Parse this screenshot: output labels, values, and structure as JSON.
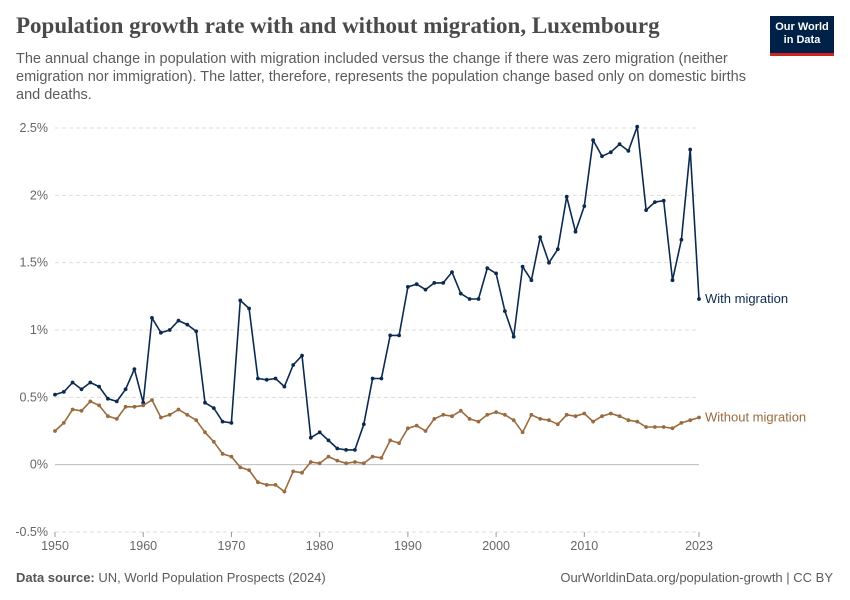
{
  "header": {
    "title": "Population growth rate with and without migration, Luxembourg",
    "subtitle": "The annual change in population with migration included versus the change if there was zero migration (neither emigration nor immigration). The latter, therefore, represents the population change based only on domestic births and deaths.",
    "logo_line1": "Our World",
    "logo_line2": "in Data"
  },
  "footer": {
    "source_label": "Data source:",
    "source_text": "UN, World Population Prospects (2024)",
    "url": "OurWorldinData.org/population-growth | CC BY"
  },
  "colors": {
    "with_migration": "#0c2a50",
    "without_migration": "#9a6b3e",
    "grid": "#dddddd",
    "zero_line": "#bbbbbb",
    "logo_bg": "#002147",
    "logo_accent": "#ce261e"
  },
  "chart_data": {
    "type": "line",
    "title": "Population growth rate with and without migration, Luxembourg",
    "xlabel": "",
    "ylabel": "",
    "xlim": [
      1950,
      2023
    ],
    "ylim": [
      -0.5,
      2.5
    ],
    "x_ticks": [
      "1950",
      "1960",
      "1970",
      "1980",
      "1990",
      "2000",
      "2010",
      "2023"
    ],
    "x_tick_values": [
      1950,
      1960,
      1970,
      1980,
      1990,
      2000,
      2010,
      2023
    ],
    "y_ticks": [
      "-0.5%",
      "0%",
      "0.5%",
      "1%",
      "1.5%",
      "2%",
      "2.5%"
    ],
    "y_tick_values": [
      -0.5,
      0,
      0.5,
      1,
      1.5,
      2,
      2.5
    ],
    "grid": true,
    "x_start": 1950,
    "series": [
      {
        "name": "With migration",
        "values": [
          0.52,
          0.54,
          0.61,
          0.56,
          0.61,
          0.58,
          0.49,
          0.47,
          0.56,
          0.71,
          0.46,
          1.09,
          0.98,
          1.0,
          1.07,
          1.04,
          0.99,
          0.46,
          0.42,
          0.32,
          0.31,
          1.22,
          1.16,
          0.64,
          0.63,
          0.64,
          0.58,
          0.74,
          0.81,
          0.2,
          0.24,
          0.18,
          0.12,
          0.11,
          0.11,
          0.3,
          0.64,
          0.64,
          0.96,
          0.96,
          1.32,
          1.34,
          1.3,
          1.35,
          1.35,
          1.43,
          1.27,
          1.23,
          1.23,
          1.46,
          1.42,
          1.14,
          0.95,
          1.47,
          1.37,
          1.69,
          1.5,
          1.6,
          1.99,
          1.73,
          1.92,
          2.41,
          2.29,
          2.32,
          2.38,
          2.33,
          2.51,
          1.89,
          1.95,
          1.96,
          1.37,
          1.67,
          2.34,
          1.23
        ]
      },
      {
        "name": "Without migration",
        "values": [
          0.25,
          0.31,
          0.41,
          0.4,
          0.47,
          0.44,
          0.36,
          0.34,
          0.43,
          0.43,
          0.44,
          0.48,
          0.35,
          0.37,
          0.41,
          0.37,
          0.33,
          0.24,
          0.17,
          0.08,
          0.06,
          -0.02,
          -0.04,
          -0.13,
          -0.15,
          -0.15,
          -0.2,
          -0.05,
          -0.06,
          0.02,
          0.01,
          0.06,
          0.03,
          0.01,
          0.02,
          0.01,
          0.06,
          0.05,
          0.18,
          0.16,
          0.27,
          0.29,
          0.25,
          0.34,
          0.37,
          0.36,
          0.4,
          0.34,
          0.32,
          0.37,
          0.39,
          0.37,
          0.33,
          0.24,
          0.37,
          0.34,
          0.33,
          0.3,
          0.37,
          0.36,
          0.38,
          0.32,
          0.36,
          0.38,
          0.36,
          0.33,
          0.32,
          0.28,
          0.28,
          0.28,
          0.27,
          0.31,
          0.33,
          0.35
        ]
      }
    ]
  }
}
